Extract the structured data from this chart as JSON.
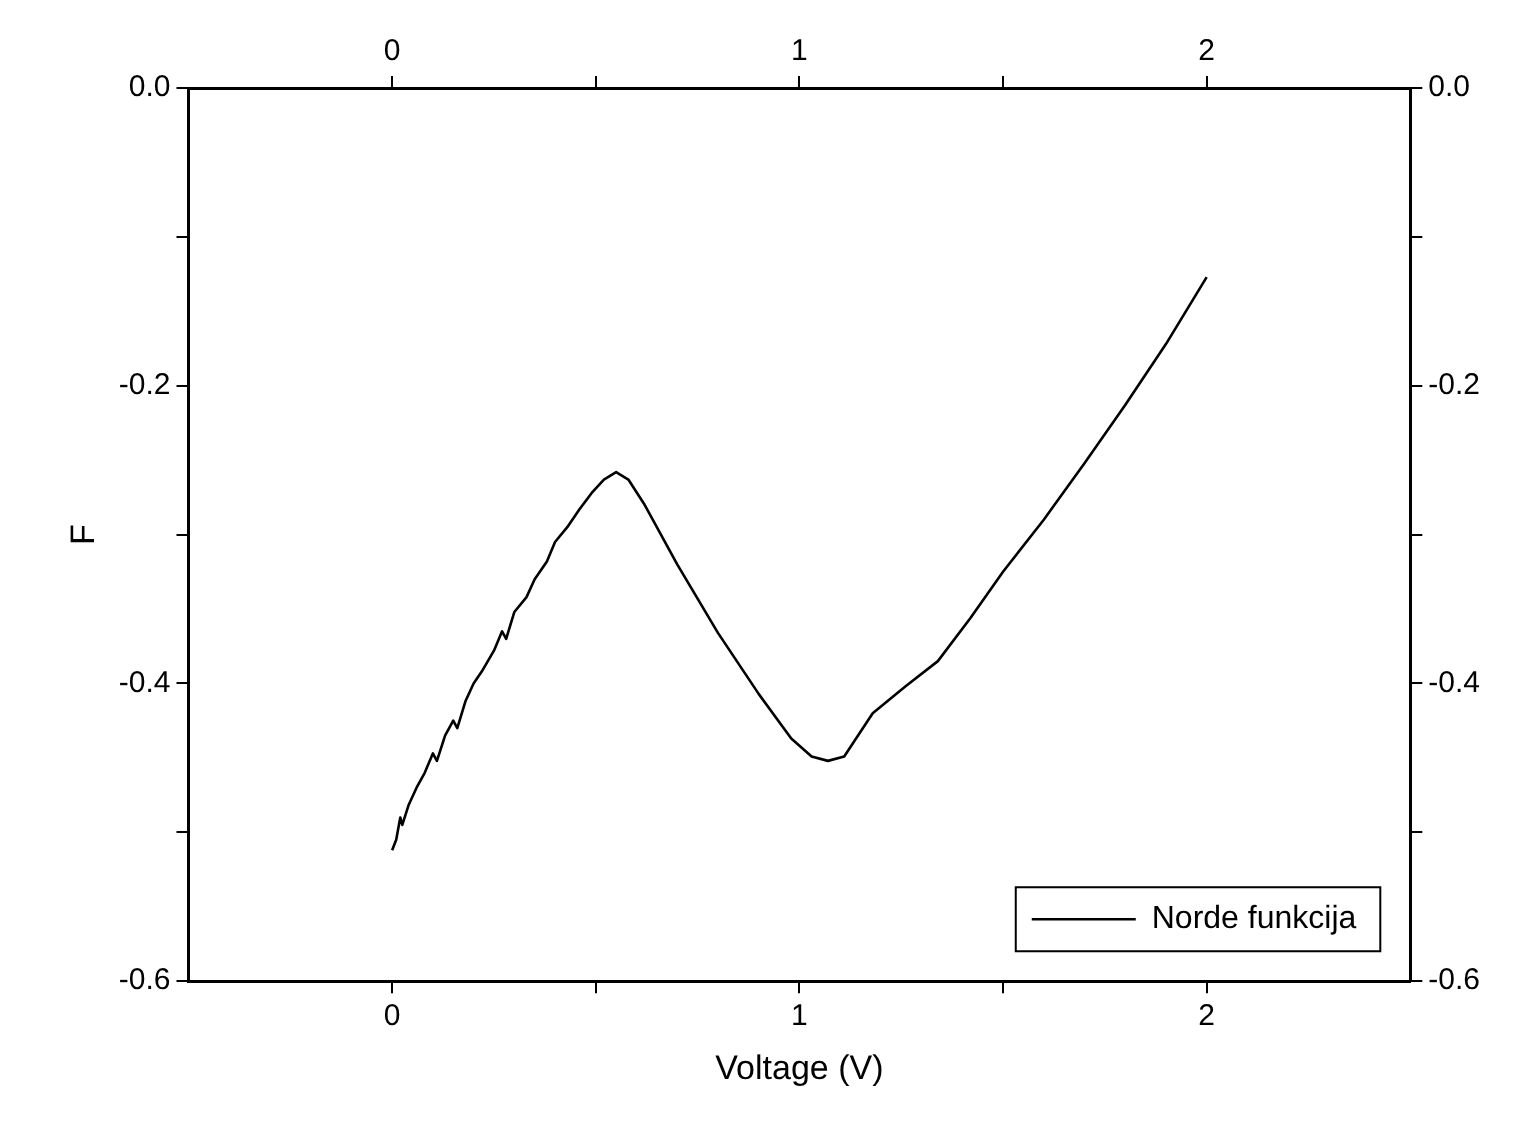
{
  "chart_data": {
    "type": "line",
    "xlabel": "Voltage (V)",
    "ylabel": "F",
    "x": [
      0,
      0.01,
      0.02,
      0.025,
      0.04,
      0.06,
      0.08,
      0.1,
      0.11,
      0.13,
      0.15,
      0.16,
      0.18,
      0.2,
      0.22,
      0.25,
      0.27,
      0.28,
      0.3,
      0.33,
      0.35,
      0.38,
      0.4,
      0.43,
      0.46,
      0.49,
      0.52,
      0.55,
      0.58,
      0.62,
      0.7,
      0.8,
      0.9,
      0.98,
      1.03,
      1.07,
      1.11,
      1.18,
      1.26,
      1.34,
      1.42,
      1.5,
      1.6,
      1.7,
      1.8,
      1.9,
      2.0
    ],
    "series": [
      {
        "name": "Norde funkcija",
        "color": "#000000",
        "values": [
          -0.512,
          -0.505,
          -0.49,
          -0.495,
          -0.482,
          -0.47,
          -0.46,
          -0.447,
          -0.452,
          -0.435,
          -0.425,
          -0.43,
          -0.412,
          -0.4,
          -0.392,
          -0.378,
          -0.365,
          -0.37,
          -0.352,
          -0.342,
          -0.33,
          -0.318,
          -0.305,
          -0.295,
          -0.283,
          -0.272,
          -0.263,
          -0.258,
          -0.263,
          -0.28,
          -0.32,
          -0.366,
          -0.407,
          -0.437,
          -0.449,
          -0.452,
          -0.449,
          -0.42,
          -0.402,
          -0.385,
          -0.356,
          -0.325,
          -0.29,
          -0.252,
          -0.213,
          -0.172,
          -0.127
        ]
      }
    ],
    "xlim": [
      -0.5,
      2.5
    ],
    "xticks": [
      0,
      {
        "value": 0.5,
        "label": null
      },
      1,
      {
        "value": 1.5,
        "label": null
      },
      2
    ],
    "x2lim": [
      -0.5,
      2.5
    ],
    "x2ticks": [
      0,
      {
        "value": 0.5,
        "label": null
      },
      1,
      {
        "value": 1.5,
        "label": null
      },
      2
    ],
    "ylim": [
      -0.6,
      0
    ],
    "yticks": [
      -0.6,
      {
        "value": -0.5,
        "label": null
      },
      -0.4,
      {
        "value": -0.3,
        "label": null
      },
      -0.2,
      {
        "value": -0.1,
        "label": null
      },
      {
        "value": 0,
        "label": "0.0"
      }
    ],
    "y2lim": [
      -0.6,
      0
    ],
    "y2ticks": [
      -0.6,
      {
        "value": -0.5,
        "label": null
      },
      -0.4,
      {
        "value": -0.3,
        "label": null
      },
      -0.2,
      {
        "value": -0.1,
        "label": null
      },
      {
        "value": 0,
        "label": "0.0"
      }
    ],
    "legend": "bottom right",
    "grid": false,
    "marker": "none",
    "line_style": "solid"
  }
}
